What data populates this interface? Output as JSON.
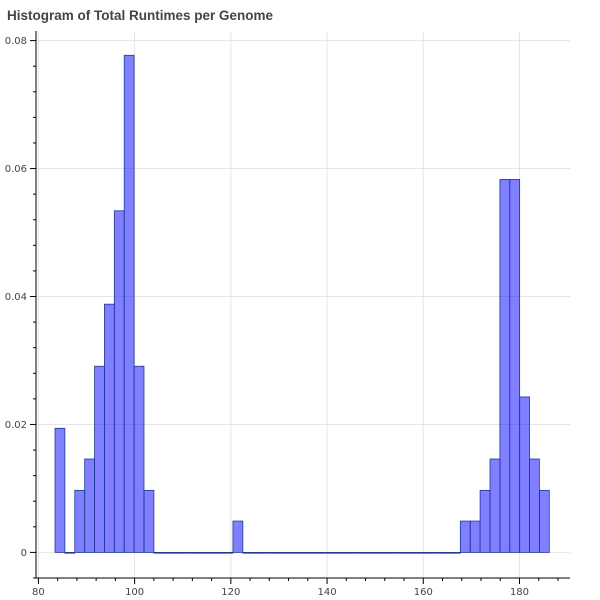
{
  "chart_data": {
    "type": "bar",
    "title": "Histogram of Total Runtimes per Genome",
    "xlabel": "",
    "ylabel": "",
    "xlim": [
      79.5,
      190.5
    ],
    "ylim": [
      -0.004,
      0.0815
    ],
    "x_ticks": [
      80,
      100,
      120,
      140,
      160,
      180
    ],
    "y_ticks": [
      0,
      0.02,
      0.04,
      0.06,
      0.08
    ],
    "y_tick_labels": [
      "0",
      "0.02",
      "0.04",
      "0.06",
      "0.08"
    ],
    "grid": true,
    "bin_start": 83.45,
    "bin_width": 2.055,
    "values": [
      0.0194,
      0,
      0.0097,
      0.0146,
      0.0291,
      0.0388,
      0.0534,
      0.0777,
      0.0291,
      0.0097,
      0,
      0,
      0,
      0,
      0,
      0,
      0,
      0,
      0.0049,
      0,
      0,
      0,
      0,
      0,
      0,
      0,
      0,
      0,
      0,
      0,
      0,
      0,
      0,
      0,
      0,
      0,
      0,
      0,
      0,
      0,
      0,
      0.0049,
      0.0049,
      0.0097,
      0.0146,
      0.0583,
      0.0583,
      0.0243,
      0.0146,
      0.0097
    ],
    "bar_color": "#0000ff",
    "bar_alpha": 0.5,
    "bar_edge_color": "#1f3a93"
  }
}
